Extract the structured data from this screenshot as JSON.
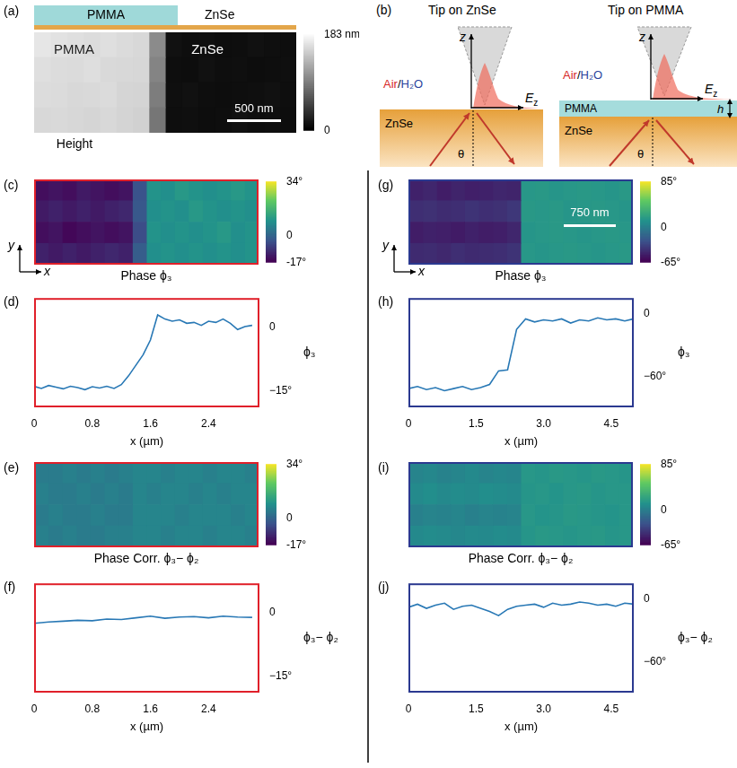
{
  "chart_data": [
    {
      "panel": "(a)",
      "type": "heatmap",
      "layer_labels": [
        "PMMA",
        "ZnSe"
      ],
      "image_labels": [
        "PMMA",
        "ZnSe"
      ],
      "scale_bar": "500 nm",
      "caption": "Height",
      "color": "gray",
      "tick_labels": false,
      "cells": [
        [
          165,
          162,
          160,
          158,
          160,
          157,
          155,
          100,
          12,
          10,
          11,
          9,
          10,
          12,
          11,
          10
        ],
        [
          160,
          158,
          157,
          159,
          156,
          155,
          154,
          95,
          10,
          9,
          12,
          10,
          11,
          9,
          10,
          11
        ],
        [
          158,
          157,
          155,
          156,
          157,
          153,
          152,
          90,
          11,
          12,
          10,
          9,
          10,
          11,
          12,
          10
        ],
        [
          155,
          156,
          154,
          153,
          155,
          152,
          150,
          85,
          10,
          11,
          9,
          10,
          12,
          10,
          11,
          9
        ]
      ],
      "colorbar": {
        "range": [
          0,
          183
        ],
        "ticks": [
          0,
          {
            "value": 183,
            "label": "183 nm"
          }
        ]
      }
    },
    {
      "panel": "(c)",
      "type": "heatmap",
      "caption": "Phase ϕ₃",
      "color": "viridis",
      "tick_labels": false,
      "axis_arrows": [
        "x",
        "y"
      ],
      "cells": [
        [
          -15,
          -14,
          -15,
          -13,
          -14,
          -15,
          -14,
          -4,
          9,
          8,
          10,
          9,
          8,
          9,
          10,
          9
        ],
        [
          -13,
          -12,
          -13,
          -12,
          -13,
          -12,
          -11,
          -3,
          8,
          9,
          8,
          10,
          9,
          8,
          9,
          8
        ],
        [
          -15,
          -14,
          -16,
          -15,
          -14,
          -15,
          -14,
          -5,
          9,
          8,
          9,
          8,
          9,
          10,
          8,
          9
        ],
        [
          -12,
          -13,
          -12,
          -13,
          -12,
          -11,
          -12,
          -2,
          8,
          9,
          8,
          9,
          8,
          9,
          8,
          9
        ]
      ],
      "colorbar": {
        "range": [
          -17,
          34
        ],
        "ticks": [
          {
            "value": -17,
            "label": "-17°"
          },
          0,
          {
            "value": 34,
            "label": "34°"
          }
        ]
      }
    },
    {
      "panel": "(d)",
      "type": "line",
      "color": "#2878b5",
      "grid": false,
      "x_label": "x (µm)",
      "y_label": "ϕ₃",
      "x": [
        0,
        0.1,
        0.2,
        0.3,
        0.4,
        0.5,
        0.6,
        0.7,
        0.8,
        0.9,
        1.0,
        1.1,
        1.2,
        1.3,
        1.4,
        1.5,
        1.6,
        1.7,
        1.8,
        1.9,
        2.0,
        2.1,
        2.2,
        2.3,
        2.4,
        2.5,
        2.6,
        2.7,
        2.8,
        2.9,
        3.0
      ],
      "values": [
        -14,
        -14.5,
        -13.8,
        -14.2,
        -14.6,
        -14,
        -14.3,
        -14.8,
        -14.1,
        -14.4,
        -14,
        -14.5,
        -13.6,
        -11.5,
        -9,
        -6.5,
        -3,
        3,
        2,
        1.5,
        1.8,
        1,
        1.2,
        0.5,
        1.5,
        1.2,
        2,
        1,
        -0.5,
        0.2,
        0.5
      ],
      "xlim": [
        0,
        3.1
      ],
      "xticks": [
        0,
        0.8,
        1.6,
        2.4
      ],
      "ylim": [
        -19,
        7
      ],
      "yticks": [
        {
          "value": -15,
          "label": "−15°"
        },
        0
      ]
    },
    {
      "panel": "(e)",
      "type": "heatmap",
      "caption": "Phase Corr. ϕ₃− ϕ₂",
      "color": "viridis",
      "tick_labels": false,
      "cells": [
        [
          4,
          4,
          5,
          4,
          5,
          4,
          5,
          6,
          6,
          5,
          6,
          6,
          5,
          6,
          6,
          5
        ],
        [
          5,
          4,
          4,
          5,
          4,
          5,
          4,
          6,
          5,
          6,
          6,
          5,
          6,
          5,
          6,
          6
        ],
        [
          4,
          5,
          4,
          4,
          5,
          4,
          4,
          6,
          6,
          6,
          5,
          6,
          6,
          6,
          5,
          6
        ],
        [
          5,
          4,
          5,
          4,
          4,
          5,
          5,
          6,
          6,
          5,
          6,
          6,
          5,
          6,
          6,
          5
        ]
      ],
      "colorbar": {
        "range": [
          -17,
          34
        ],
        "ticks": [
          {
            "value": -17,
            "label": "-17°"
          },
          0,
          {
            "value": 34,
            "label": "34°"
          }
        ]
      }
    },
    {
      "panel": "(f)",
      "type": "line",
      "color": "#2878b5",
      "grid": false,
      "x_label": "x (µm)",
      "y_label": "ϕ₃− ϕ₂",
      "x": [
        0,
        0.2,
        0.4,
        0.6,
        0.8,
        1.0,
        1.2,
        1.4,
        1.6,
        1.8,
        2.0,
        2.2,
        2.4,
        2.6,
        2.8,
        3.0
      ],
      "values": [
        -2.5,
        -2.2,
        -2,
        -1.8,
        -1.9,
        -1.5,
        -1.6,
        -1.2,
        -0.8,
        -1.3,
        -1.0,
        -0.9,
        -1.2,
        -0.8,
        -1.0,
        -1.1
      ],
      "xlim": [
        0,
        3.1
      ],
      "xticks": [
        0,
        0.8,
        1.6,
        2.4
      ],
      "ylim": [
        -19,
        7
      ],
      "yticks": [
        {
          "value": -15,
          "label": "−15°"
        },
        0
      ]
    },
    {
      "panel": "(g)",
      "type": "heatmap",
      "caption": "Phase ϕ₃",
      "color": "viridis",
      "tick_labels": false,
      "axis_arrows": [
        "x",
        "y"
      ],
      "scale_bar": "750 nm",
      "cells": [
        [
          -50,
          -48,
          -52,
          -49,
          -51,
          -50,
          -48,
          -49,
          14,
          15,
          13,
          14,
          15,
          14,
          13,
          15
        ],
        [
          -44,
          -43,
          -45,
          -44,
          -42,
          -44,
          -43,
          -40,
          15,
          14,
          15,
          13,
          14,
          15,
          14,
          13
        ],
        [
          -52,
          -50,
          -51,
          -53,
          -50,
          -52,
          -51,
          -48,
          13,
          14,
          15,
          14,
          13,
          14,
          15,
          14
        ],
        [
          -46,
          -45,
          -47,
          -44,
          -46,
          -45,
          -44,
          -42,
          14,
          13,
          14,
          15,
          14,
          13,
          14,
          15
        ]
      ],
      "colorbar": {
        "range": [
          -65,
          85
        ],
        "ticks": [
          {
            "value": -65,
            "label": "-65°"
          },
          0,
          {
            "value": 85,
            "label": "85°"
          }
        ]
      }
    },
    {
      "panel": "(h)",
      "type": "line",
      "color": "#2878b5",
      "grid": false,
      "x_label": "x (µm)",
      "y_label": "ϕ₃",
      "x": [
        0,
        0.2,
        0.4,
        0.6,
        0.8,
        1.0,
        1.2,
        1.4,
        1.6,
        1.8,
        2.0,
        2.2,
        2.4,
        2.6,
        2.8,
        3.0,
        3.2,
        3.4,
        3.6,
        3.8,
        4.0,
        4.2,
        4.4,
        4.6,
        4.8,
        5.0
      ],
      "values": [
        -72,
        -70,
        -73,
        -71,
        -74,
        -72,
        -70,
        -73,
        -71,
        -68,
        -55,
        -54,
        -15,
        -5,
        -8,
        -6,
        -7,
        -5,
        -9,
        -6,
        -7,
        -4,
        -6,
        -5,
        -7,
        -5
      ],
      "xlim": [
        0,
        5.0
      ],
      "xticks": [
        0,
        1.5,
        {
          "value": 3,
          "label": "3.0"
        },
        4.5
      ],
      "ylim": [
        -90,
        15
      ],
      "yticks": [
        {
          "value": -60,
          "label": "−60°"
        },
        0
      ]
    },
    {
      "panel": "(i)",
      "type": "heatmap",
      "caption": "Phase Corr. ϕ₃− ϕ₂",
      "color": "viridis",
      "tick_labels": false,
      "cells": [
        [
          2,
          4,
          1,
          3,
          5,
          2,
          4,
          3,
          14,
          13,
          15,
          14,
          13,
          15,
          14,
          13
        ],
        [
          6,
          8,
          5,
          7,
          6,
          8,
          7,
          6,
          13,
          14,
          12,
          14,
          15,
          13,
          14,
          14
        ],
        [
          0,
          2,
          1,
          3,
          0,
          2,
          1,
          2,
          14,
          12,
          13,
          15,
          14,
          13,
          12,
          14
        ],
        [
          5,
          7,
          6,
          4,
          6,
          5,
          7,
          6,
          13,
          15,
          14,
          13,
          14,
          15,
          13,
          14
        ]
      ],
      "colorbar": {
        "range": [
          -65,
          85
        ],
        "ticks": [
          {
            "value": -65,
            "label": "-65°"
          },
          0,
          {
            "value": 85,
            "label": "85°"
          }
        ]
      }
    },
    {
      "panel": "(j)",
      "type": "line",
      "color": "#2878b5",
      "grid": false,
      "x_label": "x (µm)",
      "y_label": "ϕ₃− ϕ₂",
      "x": [
        0,
        0.2,
        0.4,
        0.6,
        0.8,
        1.0,
        1.2,
        1.4,
        1.6,
        1.8,
        2.0,
        2.2,
        2.4,
        2.6,
        2.8,
        3.0,
        3.2,
        3.4,
        3.6,
        3.8,
        4.0,
        4.2,
        4.4,
        4.6,
        4.8,
        5.0
      ],
      "values": [
        -8,
        -5,
        -9,
        -6,
        -4,
        -10,
        -7,
        -6,
        -9,
        -12,
        -16,
        -10,
        -7,
        -6,
        -5,
        -8,
        -4,
        -6,
        -5,
        -3,
        -4,
        -6,
        -5,
        -7,
        -4,
        -5
      ],
      "xlim": [
        0,
        5.0
      ],
      "xticks": [
        0,
        1.5,
        {
          "value": 3,
          "label": "3.0"
        },
        4.5
      ],
      "ylim": [
        -90,
        15
      ],
      "yticks": [
        {
          "value": -60,
          "label": "−60°"
        },
        0
      ]
    }
  ],
  "diagram": {
    "panel": "(b)",
    "scenes": [
      {
        "title": "Tip on ZnSe",
        "medium": [
          "Air",
          "/",
          "H₂O"
        ],
        "axis": "z",
        "field": {
          "base": "E",
          "sub": "z"
        },
        "substrate": "ZnSe",
        "angle": "θ"
      },
      {
        "title": "Tip on PMMA",
        "medium": [
          "Air",
          "/",
          "H₂O"
        ],
        "axis": "z",
        "field": {
          "base": "E",
          "sub": "z"
        },
        "film": "PMMA",
        "thickness": "h",
        "substrate": "ZnSe",
        "angle": "θ"
      }
    ]
  }
}
